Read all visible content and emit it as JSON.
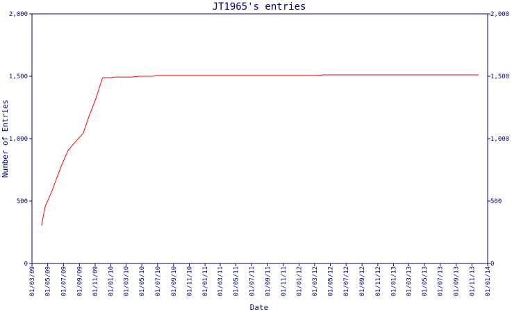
{
  "chart_data": {
    "type": "line",
    "title": "JT1965's entries",
    "x_label": "Date",
    "y_label": "Number of Entries",
    "x": [
      "2009-04-07",
      "2009-04-21",
      "2009-05-18",
      "2009-06-22",
      "2009-07-19",
      "2009-08-20",
      "2009-09-16",
      "2009-10-08",
      "2009-11-03",
      "2009-11-30",
      "2010-01-02",
      "2010-01-15",
      "2010-03-23",
      "2010-04-19",
      "2010-06-12",
      "2010-06-25",
      "2012-03-19",
      "2012-04-01",
      "2013-11-28"
    ],
    "series": [
      {
        "name": "Entries",
        "color": "#ff0000",
        "values": [
          305,
          455,
          583,
          778,
          906,
          983,
          1044,
          1178,
          1317,
          1489,
          1489,
          1494,
          1494,
          1500,
          1500,
          1506,
          1506,
          1511,
          1511
        ]
      }
    ],
    "xlim": [
      "2009-03-01",
      "2014-01-01"
    ],
    "xticks": [
      {
        "value": "2009-03-01",
        "label": "01/03/09"
      },
      {
        "value": "2009-05-01",
        "label": "01/05/09"
      },
      {
        "value": "2009-07-01",
        "label": "01/07/09"
      },
      {
        "value": "2009-09-01",
        "label": "01/09/09"
      },
      {
        "value": "2009-11-01",
        "label": "01/11/09"
      },
      {
        "value": "2010-01-01",
        "label": "01/01/10"
      },
      {
        "value": "2010-03-01",
        "label": "01/03/10"
      },
      {
        "value": "2010-05-01",
        "label": "01/05/10"
      },
      {
        "value": "2010-07-01",
        "label": "01/07/10"
      },
      {
        "value": "2010-09-01",
        "label": "01/09/10"
      },
      {
        "value": "2010-11-01",
        "label": "01/11/10"
      },
      {
        "value": "2011-01-01",
        "label": "01/01/11"
      },
      {
        "value": "2011-03-01",
        "label": "01/03/11"
      },
      {
        "value": "2011-05-01",
        "label": "01/05/11"
      },
      {
        "value": "2011-07-01",
        "label": "01/07/11"
      },
      {
        "value": "2011-09-01",
        "label": "01/09/11"
      },
      {
        "value": "2011-11-01",
        "label": "01/11/11"
      },
      {
        "value": "2012-01-01",
        "label": "01/01/12"
      },
      {
        "value": "2012-03-01",
        "label": "01/03/12"
      },
      {
        "value": "2012-05-01",
        "label": "01/05/12"
      },
      {
        "value": "2012-07-01",
        "label": "01/07/12"
      },
      {
        "value": "2012-09-01",
        "label": "01/09/12"
      },
      {
        "value": "2012-11-01",
        "label": "01/11/12"
      },
      {
        "value": "2013-01-01",
        "label": "01/01/13"
      },
      {
        "value": "2013-03-01",
        "label": "01/03/13"
      },
      {
        "value": "2013-05-01",
        "label": "01/05/13"
      },
      {
        "value": "2013-07-01",
        "label": "01/07/13"
      },
      {
        "value": "2013-09-01",
        "label": "01/09/13"
      },
      {
        "value": "2013-11-01",
        "label": "01/11/13"
      },
      {
        "value": "2014-01-01",
        "label": "01/01/14"
      }
    ],
    "ylim": [
      0,
      2000
    ],
    "yticks": [
      0,
      500,
      {
        "value": 1000,
        "label": "1,000"
      },
      {
        "value": 1500,
        "label": "1,500"
      },
      {
        "value": 2000,
        "label": "2,000"
      }
    ]
  }
}
